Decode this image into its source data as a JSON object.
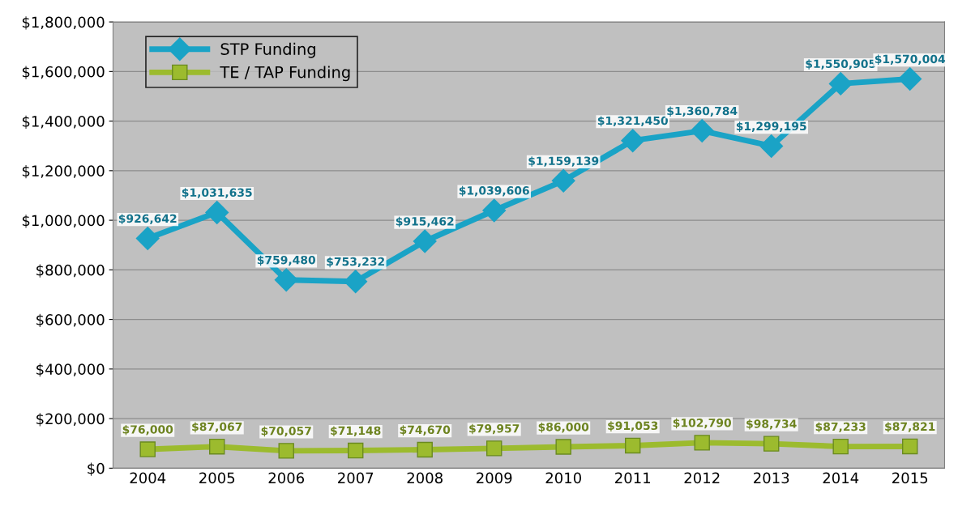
{
  "chart_data": {
    "type": "line",
    "categories": [
      "2004",
      "2005",
      "2006",
      "2007",
      "2008",
      "2009",
      "2010",
      "2011",
      "2012",
      "2013",
      "2014",
      "2015"
    ],
    "series": [
      {
        "name": "STP Funding",
        "color": "#1aa3c6",
        "marker": "diamond",
        "values": [
          926642,
          1031635,
          759480,
          753232,
          915462,
          1039606,
          1159139,
          1321450,
          1360784,
          1299195,
          1550905,
          1570004
        ],
        "value_labels": [
          "$926,642",
          "$1,031,635",
          "$759,480",
          "$753,232",
          "$915,462",
          "$1,039,606",
          "$1,159,139",
          "$1,321,450",
          "$1,360,784",
          "$1,299,195",
          "$1,550,905",
          "$1,570,004"
        ]
      },
      {
        "name": "TE / TAP Funding",
        "color": "#9cbb2e",
        "marker": "square",
        "values": [
          76000,
          87067,
          70057,
          71148,
          74670,
          79957,
          86000,
          91053,
          102790,
          98734,
          87233,
          87821
        ],
        "value_labels": [
          "$76,000",
          "$87,067",
          "$70,057",
          "$71,148",
          "$74,670",
          "$79,957",
          "$86,000",
          "$91,053",
          "$102,790",
          "$98,734",
          "$87,233",
          "$87,821"
        ]
      }
    ],
    "ylim": [
      0,
      1800000
    ],
    "yticks": [
      {
        "value": 0,
        "label": "$0"
      },
      {
        "value": 200000,
        "label": "$200,000"
      },
      {
        "value": 400000,
        "label": "$400,000"
      },
      {
        "value": 600000,
        "label": "$600,000"
      },
      {
        "value": 800000,
        "label": "$800,000"
      },
      {
        "value": 1000000,
        "label": "$1,000,000"
      },
      {
        "value": 1200000,
        "label": "$1,200,000"
      },
      {
        "value": 1400000,
        "label": "$1,400,000"
      },
      {
        "value": 1600000,
        "label": "$1,600,000"
      },
      {
        "value": 1800000,
        "label": "$1,800,000"
      }
    ],
    "grid": "y",
    "legend": "top left",
    "line_style": "solid"
  }
}
